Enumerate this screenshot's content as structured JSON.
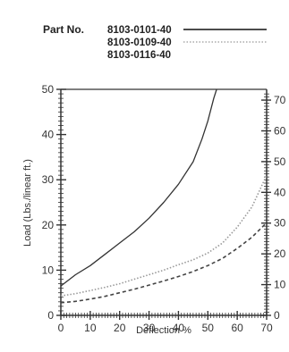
{
  "chart_data": {
    "type": "line",
    "legend": {
      "title": "Part No.",
      "placement": "top"
    },
    "xlabel": "Deflection %",
    "ylabel": "Load (Lbs./linear ft.)",
    "xlim": [
      0,
      70
    ],
    "ylim": [
      0,
      50
    ],
    "xticks": [
      "0",
      "10",
      "20",
      "30",
      "40",
      "50",
      "60",
      "70"
    ],
    "yticks": [
      "0",
      "10",
      "20",
      "30",
      "40",
      "50"
    ],
    "y2ticks": [
      "0",
      "10",
      "20",
      "30",
      "40",
      "50",
      "60",
      "70"
    ],
    "grid": false,
    "series": [
      {
        "name": "8103-0101-40",
        "style": "solid",
        "color": "#333333",
        "x": [
          0,
          5,
          10,
          15,
          20,
          25,
          30,
          35,
          40,
          45,
          48,
          50,
          52,
          53
        ],
        "y": [
          6.5,
          9,
          11,
          13.5,
          16,
          18.5,
          21.5,
          25,
          29,
          34,
          39,
          43,
          48,
          50
        ]
      },
      {
        "name": "8103-0109-40",
        "style": "dotted",
        "color": "#999999",
        "x": [
          0,
          5,
          10,
          15,
          20,
          25,
          30,
          35,
          40,
          45,
          50,
          55,
          60,
          65,
          70
        ],
        "y": [
          4.3,
          4.8,
          5.5,
          6.2,
          7,
          8,
          9,
          10,
          11.2,
          12.3,
          13.8,
          16,
          19.5,
          24,
          31
        ]
      },
      {
        "name": "8103-0116-40",
        "style": "dashed",
        "color": "#444444",
        "x": [
          0,
          5,
          10,
          15,
          20,
          25,
          30,
          35,
          40,
          45,
          50,
          55,
          60,
          65,
          70
        ],
        "y": [
          2.8,
          3.1,
          3.6,
          4.2,
          5,
          5.8,
          6.7,
          7.6,
          8.6,
          9.7,
          11,
          12.6,
          14.8,
          17.3,
          20.5
        ]
      }
    ]
  }
}
